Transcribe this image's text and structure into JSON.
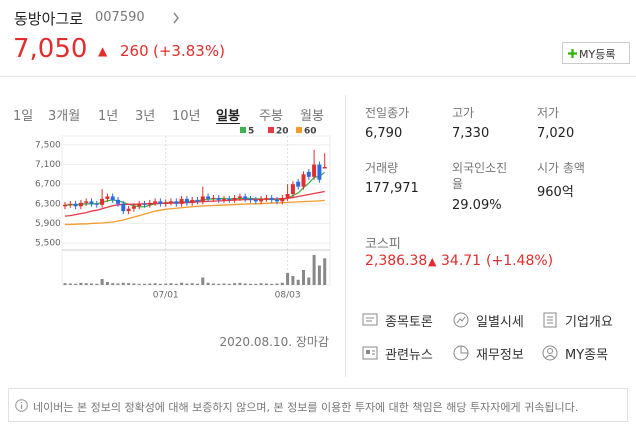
{
  "header": {
    "name": "동방아그로",
    "code": "007590",
    "price": "7,050",
    "up_mark": "▲",
    "change": "260",
    "change_pct": "(+3.83%)",
    "my_button": "MY등록"
  },
  "tabs": {
    "items": [
      "1일",
      "3개월",
      "1년",
      "3년",
      "10년",
      "일봉",
      "주봉",
      "월봉"
    ],
    "active": 5
  },
  "chart": {
    "type": "candlestick",
    "ylim": [
      5400,
      7600
    ],
    "yticks": [
      {
        "value": 7500,
        "label": "7,500"
      },
      {
        "value": 7100,
        "label": "7,100"
      },
      {
        "value": 6700,
        "label": "6,700"
      },
      {
        "value": 6300,
        "label": "6,300"
      },
      {
        "value": 5900,
        "label": "5,900"
      },
      {
        "value": 5500,
        "label": "5,500"
      }
    ],
    "xticks": [
      {
        "value": 19,
        "label": "07/01"
      },
      {
        "value": 42,
        "label": "08/03"
      }
    ],
    "up_color": "#e12d2d",
    "down_color": "#2d6ae1",
    "open": [
      6250,
      6280,
      6300,
      6250,
      6320,
      6350,
      6300,
      6280,
      6400,
      6450,
      6380,
      6300,
      6150,
      6200,
      6250,
      6300,
      6280,
      6320,
      6350,
      6300,
      6330,
      6350,
      6300,
      6400,
      6320,
      6380,
      6350,
      6450,
      6400,
      6420,
      6380,
      6400,
      6380,
      6420,
      6450,
      6400,
      6380,
      6350,
      6400,
      6420,
      6380,
      6350,
      6420,
      6500,
      6750,
      6650,
      6950,
      6850,
      7100,
      7020
    ],
    "high": [
      6340,
      6360,
      6360,
      6380,
      6410,
      6410,
      6360,
      6600,
      6510,
      6510,
      6440,
      6360,
      6260,
      6310,
      6360,
      6360,
      6380,
      6410,
      6410,
      6390,
      6410,
      6410,
      6460,
      6460,
      6440,
      6440,
      6650,
      6510,
      6480,
      6480,
      6460,
      6460,
      6480,
      6510,
      6510,
      6460,
      6440,
      6460,
      6480,
      6480,
      6440,
      6480,
      6700,
      6760,
      6810,
      6960,
      7010,
      7400,
      7160,
      7330
    ],
    "low": [
      6190,
      6220,
      6190,
      6190,
      6260,
      6240,
      6220,
      6220,
      6340,
      6320,
      6240,
      6090,
      6090,
      6140,
      6190,
      6220,
      6220,
      6260,
      6240,
      6240,
      6270,
      6240,
      6240,
      6260,
      6260,
      6290,
      6290,
      6340,
      6340,
      6320,
      6320,
      6320,
      6320,
      6360,
      6340,
      6320,
      6290,
      6290,
      6340,
      6320,
      6290,
      6290,
      6360,
      6440,
      6590,
      6590,
      6790,
      6790,
      6730,
      7020
    ],
    "close": [
      6280,
      6300,
      6250,
      6320,
      6350,
      6300,
      6280,
      6400,
      6450,
      6380,
      6300,
      6150,
      6200,
      6250,
      6300,
      6280,
      6320,
      6350,
      6300,
      6330,
      6350,
      6300,
      6400,
      6320,
      6380,
      6350,
      6450,
      6400,
      6420,
      6380,
      6400,
      6380,
      6420,
      6450,
      6400,
      6380,
      6350,
      6400,
      6420,
      6380,
      6350,
      6420,
      6500,
      6700,
      6650,
      6900,
      6850,
      7100,
      6790,
      7050
    ],
    "series": [
      {
        "name": "5",
        "color": "#3cb44b",
        "values": [
          6270,
          6280,
          6280,
          6290,
          6300,
          6300,
          6300,
          6330,
          6360,
          6380,
          6360,
          6330,
          6290,
          6260,
          6240,
          6240,
          6270,
          6300,
          6310,
          6320,
          6330,
          6330,
          6340,
          6340,
          6350,
          6360,
          6380,
          6390,
          6400,
          6400,
          6410,
          6400,
          6400,
          6410,
          6410,
          6410,
          6400,
          6400,
          6390,
          6390,
          6380,
          6390,
          6410,
          6470,
          6520,
          6630,
          6720,
          6840,
          6860,
          6940
        ]
      },
      {
        "name": "20",
        "color": "#e63946",
        "values": [
          6050,
          6060,
          6080,
          6100,
          6120,
          6150,
          6170,
          6200,
          6230,
          6260,
          6280,
          6290,
          6290,
          6290,
          6295,
          6300,
          6300,
          6305,
          6310,
          6310,
          6315,
          6320,
          6320,
          6325,
          6330,
          6340,
          6345,
          6350,
          6355,
          6360,
          6365,
          6370,
          6375,
          6380,
          6385,
          6385,
          6390,
          6390,
          6395,
          6400,
          6400,
          6405,
          6410,
          6430,
          6450,
          6470,
          6490,
          6510,
          6530,
          6550
        ]
      },
      {
        "name": "60",
        "color": "#f39c2b",
        "values": [
          5880,
          5880,
          5885,
          5890,
          5890,
          5900,
          5905,
          5910,
          5920,
          5930,
          5950,
          5970,
          6000,
          6030,
          6060,
          6090,
          6120,
          6150,
          6170,
          6190,
          6200,
          6210,
          6220,
          6230,
          6240,
          6250,
          6255,
          6260,
          6265,
          6270,
          6275,
          6280,
          6285,
          6290,
          6295,
          6300,
          6300,
          6305,
          6310,
          6315,
          6320,
          6325,
          6330,
          6335,
          6340,
          6345,
          6350,
          6355,
          6360,
          6370
        ]
      }
    ],
    "volume_ylim": [
      0,
      220000
    ],
    "volume": [
      12000,
      10000,
      8000,
      14000,
      12000,
      10000,
      8000,
      40000,
      20000,
      12000,
      10000,
      15000,
      12000,
      10000,
      8000,
      8000,
      10000,
      12000,
      8000,
      10000,
      12000,
      8000,
      15000,
      10000,
      12000,
      8000,
      50000,
      15000,
      10000,
      8000,
      10000,
      8000,
      12000,
      14000,
      10000,
      8000,
      8000,
      12000,
      10000,
      8000,
      10000,
      15000,
      80000,
      60000,
      35000,
      100000,
      50000,
      200000,
      130000,
      177971
    ]
  },
  "date": "2020.08.10. 장마감",
  "stats": [
    {
      "label": "전일종가",
      "value": "6,790"
    },
    {
      "label": "고가",
      "value": "7,330"
    },
    {
      "label": "저가",
      "value": "7,020"
    },
    {
      "label": "거래량",
      "value": "177,971"
    },
    {
      "label": "외국인소진율",
      "value": "29.09%"
    },
    {
      "label": "시가 총액",
      "value": "960억"
    }
  ],
  "index": {
    "name": "코스피",
    "value": "2,386.38",
    "up_mark": "▲",
    "change": "34.71",
    "change_pct": "(+1.48%)"
  },
  "buttons": [
    "종목토론",
    "일별시세",
    "기업개요",
    "관련뉴스",
    "재무정보",
    "MY종목"
  ],
  "disclaimer": "네이버는 본 정보의 정확성에 대해 보증하지 않으며, 본 정보를 이용한 투자에 대한 책임은 해당 투자자에게 귀속됩니다."
}
